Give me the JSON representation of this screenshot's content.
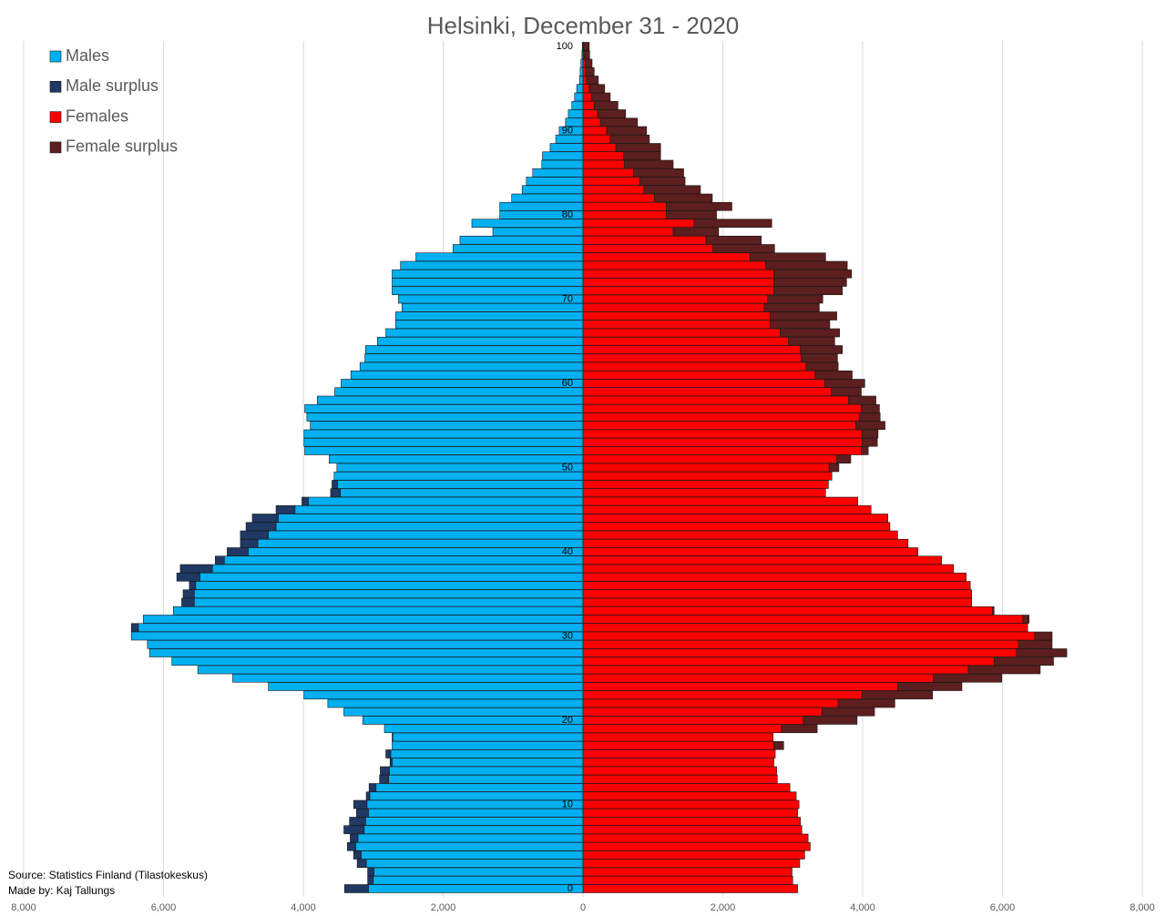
{
  "chart_data": {
    "type": "bar",
    "orientation": "horizontal",
    "stacked": true,
    "title": "Helsinki, December 31 - 2020",
    "source": "Source: Statistics Finland  (Tilastokeskus)",
    "author": "Made by: Kaj Tallungs",
    "categories": [
      0,
      null,
      null,
      null,
      null,
      null,
      null,
      null,
      null,
      null,
      10,
      null,
      null,
      null,
      null,
      null,
      null,
      null,
      null,
      null,
      20,
      null,
      null,
      null,
      null,
      null,
      null,
      null,
      null,
      null,
      30,
      null,
      null,
      null,
      null,
      null,
      null,
      null,
      null,
      null,
      40,
      null,
      null,
      null,
      null,
      null,
      null,
      null,
      null,
      null,
      50,
      null,
      null,
      null,
      null,
      null,
      null,
      null,
      null,
      null,
      60,
      null,
      null,
      null,
      null,
      null,
      null,
      null,
      null,
      null,
      70,
      null,
      null,
      null,
      null,
      null,
      null,
      null,
      null,
      null,
      80,
      null,
      null,
      null,
      null,
      null,
      null,
      null,
      null,
      null,
      90,
      null,
      null,
      null,
      null,
      null,
      null,
      null,
      null,
      null,
      100
    ],
    "series": [
      {
        "name": "Males",
        "color": "#00b0f0",
        "values": [
          -3070,
          -3000,
          -2990,
          -3100,
          -3170,
          -3250,
          -3220,
          -3130,
          -3110,
          -3070,
          -3090,
          -3050,
          -2960,
          -2780,
          -2770,
          -2730,
          -2750,
          -2730,
          -2720,
          -2840,
          -3150,
          -3420,
          -3650,
          -3990,
          -4500,
          -5010,
          -5510,
          -5880,
          -6200,
          -6230,
          -6460,
          -6360,
          -6290,
          -5860,
          -5560,
          -5560,
          -5540,
          -5480,
          -5300,
          -5130,
          -4790,
          -4650,
          -4500,
          -4390,
          -4360,
          -4120,
          -3930,
          -3470,
          -3510,
          -3560,
          -3520,
          -3630,
          -3980,
          -3990,
          -3990,
          -3900,
          -3950,
          -3980,
          -3800,
          -3550,
          -3460,
          -3320,
          -3190,
          -3120,
          -3110,
          -2940,
          -2820,
          -2680,
          -2680,
          -2590,
          -2640,
          -2730,
          -2730,
          -2730,
          -2610,
          -2390,
          -1860,
          -1760,
          -1290,
          -1590,
          -1190,
          -1190,
          -1020,
          -870,
          -810,
          -720,
          -590,
          -580,
          -470,
          -390,
          -340,
          -250,
          -210,
          -160,
          -120,
          -90,
          -50,
          -40,
          -30,
          -15,
          -10
        ]
      },
      {
        "name": "Male surplus",
        "color": "#1f3864",
        "values": [
          -340,
          -80,
          -90,
          -130,
          -110,
          -120,
          -110,
          -290,
          -230,
          -170,
          -190,
          -50,
          -100,
          -130,
          -130,
          -30,
          -70,
          0,
          -10,
          0,
          0,
          0,
          0,
          0,
          0,
          0,
          0,
          0,
          0,
          0,
          0,
          -100,
          0,
          0,
          -180,
          -160,
          -90,
          -330,
          -460,
          -130,
          -300,
          -250,
          -400,
          -430,
          -370,
          -270,
          -90,
          -140,
          -80,
          0,
          0,
          0,
          0,
          0,
          0,
          0,
          0,
          0,
          0,
          0,
          0,
          0,
          0,
          0,
          0,
          0,
          0,
          0,
          0,
          0,
          0,
          0,
          0,
          0,
          0,
          0,
          0,
          0,
          0,
          0,
          0,
          0,
          0,
          0,
          0,
          0,
          0,
          0,
          0,
          0,
          0,
          0,
          0,
          0,
          0,
          0,
          0,
          0,
          0,
          0,
          0
        ]
      },
      {
        "name": "Females",
        "color": "#ff0000",
        "values": [
          3070,
          3000,
          2990,
          3100,
          3170,
          3250,
          3220,
          3130,
          3110,
          3070,
          3090,
          3050,
          2960,
          2780,
          2770,
          2730,
          2750,
          2730,
          2720,
          2840,
          3150,
          3420,
          3650,
          3990,
          4500,
          5010,
          5510,
          5880,
          6200,
          6230,
          6460,
          6360,
          6290,
          5860,
          5560,
          5560,
          5540,
          5480,
          5300,
          5130,
          4790,
          4650,
          4500,
          4390,
          4360,
          4120,
          3930,
          3470,
          3510,
          3560,
          3520,
          3630,
          3980,
          3990,
          3990,
          3900,
          3950,
          3980,
          3800,
          3550,
          3460,
          3320,
          3190,
          3120,
          3110,
          2940,
          2820,
          2680,
          2680,
          2590,
          2640,
          2730,
          2730,
          2730,
          2610,
          2390,
          1860,
          1760,
          1290,
          1590,
          1190,
          1190,
          1020,
          870,
          810,
          720,
          590,
          580,
          470,
          390,
          340,
          250,
          210,
          160,
          120,
          90,
          50,
          40,
          30,
          15,
          10
        ]
      },
      {
        "name": "Female surplus",
        "color": "#5c1e1e",
        "values": [
          0,
          0,
          0,
          0,
          0,
          0,
          0,
          0,
          0,
          0,
          0,
          0,
          0,
          0,
          0,
          0,
          0,
          140,
          0,
          510,
          770,
          750,
          810,
          1010,
          920,
          980,
          1030,
          850,
          720,
          480,
          250,
          0,
          90,
          20,
          0,
          0,
          0,
          0,
          0,
          0,
          0,
          0,
          0,
          0,
          0,
          0,
          0,
          0,
          0,
          0,
          140,
          200,
          100,
          220,
          230,
          420,
          300,
          260,
          390,
          430,
          570,
          530,
          460,
          520,
          600,
          660,
          850,
          850,
          950,
          790,
          790,
          980,
          1040,
          1110,
          1170,
          1080,
          880,
          790,
          650,
          1110,
          720,
          940,
          830,
          810,
          650,
          720,
          700,
          530,
          640,
          560,
          570,
          530,
          400,
          340,
          270,
          220,
          170,
          120,
          100,
          80,
          80
        ]
      }
    ],
    "xlim": [
      -8000,
      8000
    ],
    "xticks": [
      {
        "value": -8000,
        "label": "8,000"
      },
      {
        "value": -6000,
        "label": "6,000"
      },
      {
        "value": -4000,
        "label": "4,000"
      },
      {
        "value": -2000,
        "label": "2,000"
      },
      0,
      {
        "value": 2000,
        "label": "2,000"
      },
      {
        "value": 4000,
        "label": "4,000"
      },
      {
        "value": 6000,
        "label": "6,000"
      },
      {
        "value": 8000,
        "label": "8,000"
      }
    ],
    "grid": true,
    "legend": "top-left"
  }
}
